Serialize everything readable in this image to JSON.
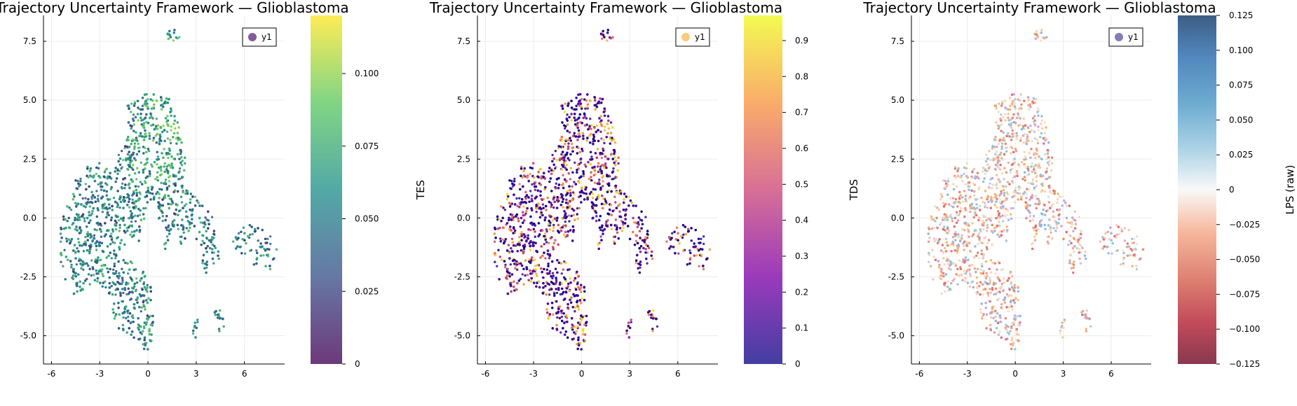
{
  "chart_data": [
    {
      "type": "scatter",
      "title": "Trajectory Uncertainty Framework — Glioblastoma",
      "xlabel": "",
      "ylabel": "",
      "xlim": [
        -6.5,
        8.5
      ],
      "ylim": [
        -6.2,
        8.6
      ],
      "xticks": [
        -6,
        -3,
        0,
        3,
        6
      ],
      "xtick_labels": [
        "-6",
        "-3",
        "0",
        "3",
        "6"
      ],
      "yticks": [
        -5,
        -2.5,
        0,
        2.5,
        5,
        7.5
      ],
      "ytick_labels": [
        "-5.0",
        "-2.5",
        "0.0",
        "2.5",
        "5.0",
        "7.5"
      ],
      "grid": true,
      "legend": {
        "position": "top-right",
        "entries": [
          "y1"
        ],
        "colors": [
          "#6e3f86"
        ]
      },
      "colorbar": {
        "label": "",
        "colormap": "viridis",
        "range": [
          0,
          0.12
        ],
        "ticks": [
          0,
          0.025,
          0.05,
          0.075,
          0.1
        ],
        "tick_labels": [
          "0",
          "0.025",
          "0.050",
          "0.075",
          "0.100"
        ]
      },
      "points_per_marker": "colored by value (viridis, alpha 0.75)"
    },
    {
      "type": "scatter",
      "title": "Trajectory Uncertainty Framework — Glioblastoma",
      "xlabel": "",
      "ylabel": "TES",
      "xlim": [
        -6.5,
        8.5
      ],
      "ylim": [
        -6.2,
        8.6
      ],
      "xticks": [
        -6,
        -3,
        0,
        3,
        6
      ],
      "xtick_labels": [
        "-6",
        "-3",
        "0",
        "3",
        "6"
      ],
      "yticks": [
        -5,
        -2.5,
        0,
        2.5,
        5,
        7.5
      ],
      "ytick_labels": [
        "-5.0",
        "-2.5",
        "0.0",
        "2.5",
        "5.0",
        "7.5"
      ],
      "grid": true,
      "legend": {
        "position": "top-right",
        "entries": [
          "y1"
        ],
        "colors": [
          "#fbbf6a"
        ]
      },
      "colorbar": {
        "label": "",
        "colormap": "plasma",
        "range": [
          0,
          0.97
        ],
        "ticks": [
          0,
          0.1,
          0.2,
          0.3,
          0.4,
          0.5,
          0.6,
          0.7,
          0.8,
          0.9
        ],
        "tick_labels": [
          "0",
          "0.1",
          "0.2",
          "0.3",
          "0.4",
          "0.5",
          "0.6",
          "0.7",
          "0.8",
          "0.9"
        ]
      }
    },
    {
      "type": "scatter",
      "title": "Trajectory Uncertainty Framework — Glioblastoma",
      "xlabel": "",
      "ylabel": "TDS",
      "xlim": [
        -6.5,
        8.5
      ],
      "ylim": [
        -6.2,
        8.6
      ],
      "xticks": [
        -6,
        -3,
        0,
        3,
        6
      ],
      "xtick_labels": [
        "-6",
        "-3",
        "0",
        "3",
        "6"
      ],
      "yticks": [
        -5,
        -2.5,
        0,
        2.5,
        5,
        7.5
      ],
      "ytick_labels": [
        "-5.0",
        "-2.5",
        "0.0",
        "2.5",
        "5.0",
        "7.5"
      ],
      "grid": true,
      "legend": {
        "position": "top-right",
        "entries": [
          "y1"
        ],
        "colors": [
          "#6e67a8"
        ]
      },
      "colorbar": {
        "label": "LPS (raw)",
        "colormap": "RdBu",
        "range": [
          -0.125,
          0.125
        ],
        "ticks": [
          -0.125,
          -0.1,
          -0.075,
          -0.05,
          -0.025,
          0,
          0.025,
          0.05,
          0.075,
          0.1,
          0.125
        ],
        "tick_labels": [
          "−0.125",
          "−0.100",
          "−0.075",
          "−0.050",
          "−0.025",
          "0",
          "0.025",
          "0.050",
          "0.075",
          "0.100",
          "0.125"
        ]
      }
    }
  ],
  "shape": {
    "note": "UMAP point cloud outline (data units)",
    "clusters": [
      [
        [
          -2.2,
          2.2
        ],
        [
          -1.2,
          3.6
        ],
        [
          -1.3,
          4.9
        ],
        [
          0,
          5.3
        ],
        [
          1.3,
          5.1
        ],
        [
          2.0,
          3.8
        ],
        [
          2.4,
          2.7
        ],
        [
          2.2,
          1.6
        ],
        [
          3.3,
          0.6
        ],
        [
          4.0,
          0.1
        ],
        [
          4.4,
          -1.6
        ],
        [
          3.7,
          -2.6
        ],
        [
          3.1,
          -1.6
        ],
        [
          2.8,
          -0.4
        ],
        [
          2.1,
          -1.2
        ],
        [
          1.7,
          -0.2
        ],
        [
          1.0,
          -1.5
        ],
        [
          0.4,
          0.8
        ],
        [
          -0.2,
          -0.4
        ],
        [
          -0.6,
          -1.2
        ],
        [
          -1.4,
          -0.6
        ],
        [
          -1.5,
          -2.4
        ],
        [
          -2.4,
          -3.4
        ],
        [
          -3.2,
          -2.8
        ],
        [
          -4.6,
          -3.3
        ],
        [
          -5.4,
          -2.4
        ],
        [
          -5.5,
          -0.4
        ],
        [
          -4.3,
          2.0
        ],
        [
          -3.2,
          2.4
        ]
      ],
      [
        [
          -1.7,
          -1.6
        ],
        [
          -0.4,
          -2.1
        ],
        [
          0.3,
          -3.0
        ],
        [
          0.4,
          -4.8
        ],
        [
          0.0,
          -5.7
        ],
        [
          -1.2,
          -5.0
        ],
        [
          -2.0,
          -4.6
        ],
        [
          -2.3,
          -3.4
        ],
        [
          -2.0,
          -2.3
        ]
      ],
      [
        [
          5.4,
          -0.6
        ],
        [
          6.5,
          -0.2
        ],
        [
          7.6,
          -0.7
        ],
        [
          8.2,
          -1.5
        ],
        [
          7.7,
          -2.2
        ],
        [
          6.5,
          -2.0
        ],
        [
          5.6,
          -1.6
        ],
        [
          5.2,
          -1.0
        ]
      ],
      [
        [
          1.1,
          7.9
        ],
        [
          1.8,
          8.3
        ],
        [
          2.1,
          7.5
        ],
        [
          1.9,
          7.0
        ],
        [
          1.4,
          7.2
        ]
      ],
      [
        [
          4.1,
          -3.9
        ],
        [
          4.6,
          -3.8
        ],
        [
          4.8,
          -4.6
        ],
        [
          4.3,
          -4.9
        ]
      ],
      [
        [
          2.7,
          -4.4
        ],
        [
          3.2,
          -4.2
        ],
        [
          3.0,
          -5.1
        ],
        [
          2.6,
          -5.0
        ]
      ],
      [
        [
          3.6,
          -0.9
        ],
        [
          4.2,
          -0.6
        ],
        [
          4.5,
          -1.9
        ],
        [
          3.9,
          -2.1
        ]
      ]
    ]
  }
}
